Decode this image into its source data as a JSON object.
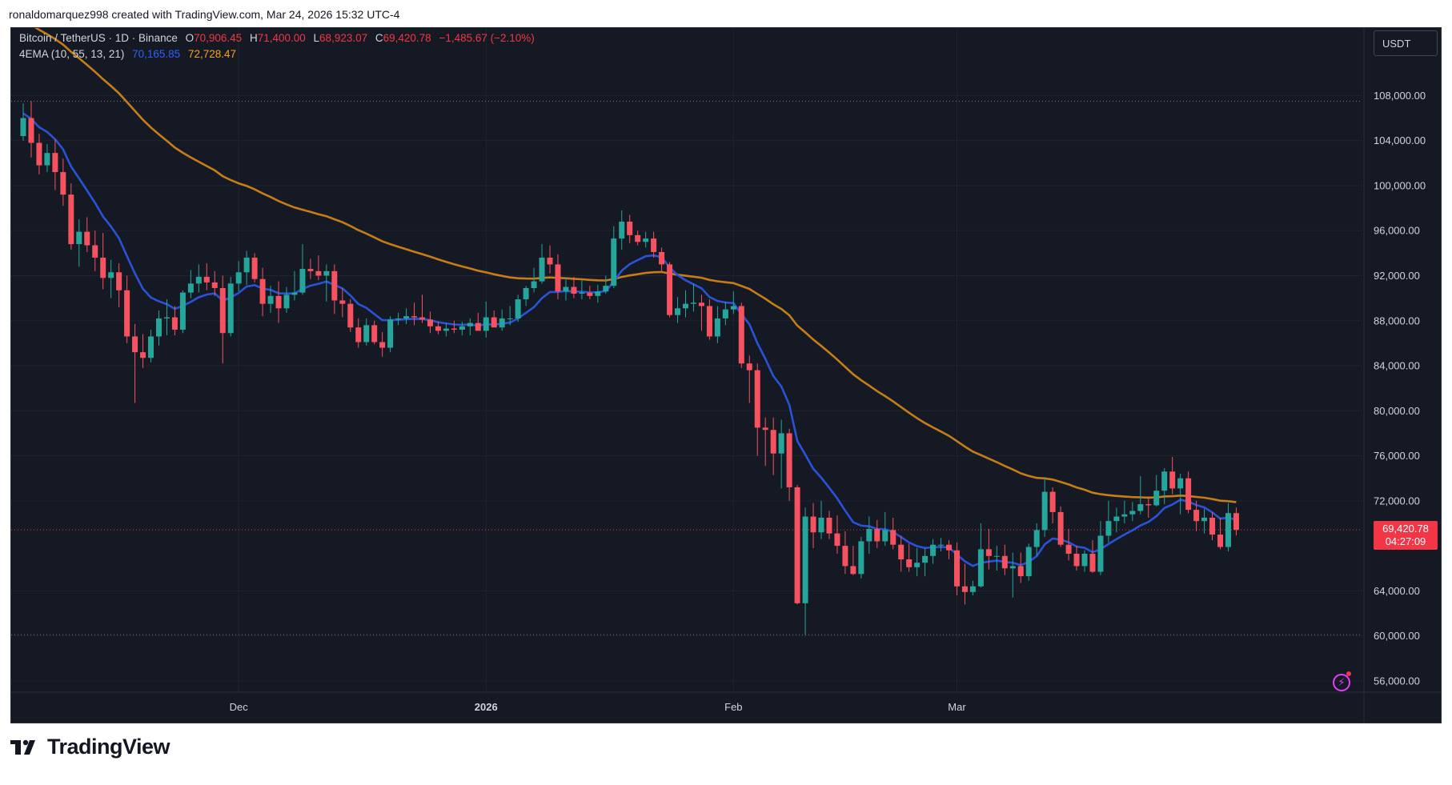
{
  "header": {
    "attribution": "ronaldomarquez998 created with TradingView.com, Mar 24, 2026 15:32 UTC-4"
  },
  "legend": {
    "symbol": "Bitcoin / TetherUS · 1D · Binance",
    "o_label": "O",
    "o_value": "70,906.45",
    "h_label": "H",
    "h_value": "71,400.00",
    "l_label": "L",
    "l_value": "68,923.07",
    "c_label": "C",
    "c_value": "69,420.78",
    "change": "−1,485.67 (−2.10%)",
    "indicator": "4EMA (10, 55, 13, 21)",
    "ema_fast_value": "70,165.85",
    "ema_slow_value": "72,728.47"
  },
  "price_axis": {
    "unit": "USDT",
    "tick_labels": [
      "108,000.00",
      "104,000.00",
      "100,000.00",
      "96,000.00",
      "92,000.00",
      "88,000.00",
      "84,000.00",
      "80,000.00",
      "76,000.00",
      "72,000.00",
      "64,000.00",
      "60,000.00",
      "56,000.00"
    ]
  },
  "last_price": {
    "value": "69,420.78",
    "countdown": "04:27:09"
  },
  "time_axis": {
    "labels": [
      "Dec",
      "2026",
      "Feb",
      "Mar"
    ]
  },
  "colors": {
    "up": "#26a69a",
    "down": "#f7525f",
    "ema_fast": "#2a52d6",
    "ema_slow": "#c57d17",
    "background": "#151924",
    "grid": "#1f2330",
    "axis_text": "#d1d4dc",
    "last_price_tag": "#f23645"
  },
  "icons": [
    "tradingview-logo",
    "lightning-icon"
  ],
  "branding": {
    "name": "TradingView"
  },
  "chart_data": {
    "type": "candlestick",
    "title": "Bitcoin / TetherUS · 1D · Binance",
    "ylim": [
      55000,
      114000
    ],
    "grid": true,
    "legend_position": "top-left",
    "x_start_date": "2025-11-04",
    "x_ticks": [
      {
        "label": "Dec",
        "date": "2025-12-01"
      },
      {
        "label": "2026",
        "date": "2026-01-01"
      },
      {
        "label": "Feb",
        "date": "2026-02-01"
      },
      {
        "label": "Mar",
        "date": "2026-03-01"
      }
    ],
    "y_ticks": [
      56000,
      60000,
      64000,
      72000,
      76000,
      80000,
      84000,
      88000,
      92000,
      96000,
      100000,
      104000,
      108000
    ],
    "last_price": 69420.78,
    "candles": [
      {
        "o": 104400,
        "h": 107300,
        "l": 104000,
        "c": 106000
      },
      {
        "o": 106000,
        "h": 107500,
        "l": 102500,
        "c": 103800
      },
      {
        "o": 103800,
        "h": 104600,
        "l": 101000,
        "c": 101800
      },
      {
        "o": 101800,
        "h": 103700,
        "l": 101200,
        "c": 102900
      },
      {
        "o": 102900,
        "h": 104100,
        "l": 99600,
        "c": 101200
      },
      {
        "o": 101200,
        "h": 102400,
        "l": 98200,
        "c": 99200
      },
      {
        "o": 99200,
        "h": 100200,
        "l": 94300,
        "c": 94800
      },
      {
        "o": 94800,
        "h": 97000,
        "l": 92800,
        "c": 95900
      },
      {
        "o": 95900,
        "h": 97200,
        "l": 94100,
        "c": 94700
      },
      {
        "o": 94700,
        "h": 96000,
        "l": 92400,
        "c": 93600
      },
      {
        "o": 93600,
        "h": 95800,
        "l": 90800,
        "c": 91800
      },
      {
        "o": 91800,
        "h": 93400,
        "l": 90000,
        "c": 92300
      },
      {
        "o": 92300,
        "h": 93100,
        "l": 89200,
        "c": 90700
      },
      {
        "o": 90700,
        "h": 92000,
        "l": 86000,
        "c": 86600
      },
      {
        "o": 86600,
        "h": 87700,
        "l": 80700,
        "c": 85200
      },
      {
        "o": 85200,
        "h": 86800,
        "l": 83800,
        "c": 84700
      },
      {
        "o": 84700,
        "h": 87200,
        "l": 84300,
        "c": 86600
      },
      {
        "o": 86600,
        "h": 88900,
        "l": 85800,
        "c": 88200
      },
      {
        "o": 88200,
        "h": 89900,
        "l": 86700,
        "c": 88300
      },
      {
        "o": 88300,
        "h": 89300,
        "l": 86700,
        "c": 87200
      },
      {
        "o": 87200,
        "h": 90700,
        "l": 86900,
        "c": 90500
      },
      {
        "o": 90500,
        "h": 92500,
        "l": 90000,
        "c": 91300
      },
      {
        "o": 91300,
        "h": 93000,
        "l": 90500,
        "c": 91900
      },
      {
        "o": 91900,
        "h": 93100,
        "l": 90700,
        "c": 91400
      },
      {
        "o": 91400,
        "h": 92400,
        "l": 90200,
        "c": 90900
      },
      {
        "o": 90900,
        "h": 92000,
        "l": 84200,
        "c": 86900
      },
      {
        "o": 86900,
        "h": 91900,
        "l": 86600,
        "c": 91300
      },
      {
        "o": 91300,
        "h": 93300,
        "l": 90600,
        "c": 92300
      },
      {
        "o": 92300,
        "h": 94200,
        "l": 91200,
        "c": 93600
      },
      {
        "o": 93600,
        "h": 94000,
        "l": 91400,
        "c": 91700
      },
      {
        "o": 91700,
        "h": 92700,
        "l": 88400,
        "c": 89500
      },
      {
        "o": 89500,
        "h": 91100,
        "l": 88700,
        "c": 90200
      },
      {
        "o": 90200,
        "h": 91500,
        "l": 87800,
        "c": 89100
      },
      {
        "o": 89100,
        "h": 91000,
        "l": 88700,
        "c": 90300
      },
      {
        "o": 90300,
        "h": 92400,
        "l": 89800,
        "c": 90500
      },
      {
        "o": 90500,
        "h": 94800,
        "l": 90300,
        "c": 92600
      },
      {
        "o": 92600,
        "h": 93500,
        "l": 91700,
        "c": 92400
      },
      {
        "o": 92400,
        "h": 93800,
        "l": 91600,
        "c": 92000
      },
      {
        "o": 92000,
        "h": 93000,
        "l": 89700,
        "c": 92400
      },
      {
        "o": 92400,
        "h": 93000,
        "l": 88600,
        "c": 89800
      },
      {
        "o": 89800,
        "h": 90900,
        "l": 88300,
        "c": 89500
      },
      {
        "o": 89500,
        "h": 89900,
        "l": 87000,
        "c": 87400
      },
      {
        "o": 87400,
        "h": 88200,
        "l": 85600,
        "c": 86100
      },
      {
        "o": 86100,
        "h": 88200,
        "l": 85800,
        "c": 87600
      },
      {
        "o": 87600,
        "h": 88000,
        "l": 85900,
        "c": 86100
      },
      {
        "o": 86100,
        "h": 87000,
        "l": 84800,
        "c": 85600
      },
      {
        "o": 85600,
        "h": 88400,
        "l": 85200,
        "c": 88100
      },
      {
        "o": 88100,
        "h": 88700,
        "l": 87600,
        "c": 88200
      },
      {
        "o": 88200,
        "h": 89100,
        "l": 87700,
        "c": 88400
      },
      {
        "o": 88400,
        "h": 89600,
        "l": 87600,
        "c": 88300
      },
      {
        "o": 88300,
        "h": 90300,
        "l": 87800,
        "c": 88100
      },
      {
        "o": 88100,
        "h": 88800,
        "l": 86900,
        "c": 87500
      },
      {
        "o": 87500,
        "h": 87900,
        "l": 86800,
        "c": 87100
      },
      {
        "o": 87100,
        "h": 87800,
        "l": 86600,
        "c": 87300
      },
      {
        "o": 87300,
        "h": 88000,
        "l": 86900,
        "c": 87200
      },
      {
        "o": 87200,
        "h": 87900,
        "l": 86700,
        "c": 87500
      },
      {
        "o": 87500,
        "h": 88200,
        "l": 86700,
        "c": 87800
      },
      {
        "o": 87800,
        "h": 88700,
        "l": 87100,
        "c": 87100
      },
      {
        "o": 87100,
        "h": 89700,
        "l": 86500,
        "c": 88300
      },
      {
        "o": 88300,
        "h": 88900,
        "l": 87700,
        "c": 87400
      },
      {
        "o": 87400,
        "h": 89000,
        "l": 87100,
        "c": 88200
      },
      {
        "o": 88200,
        "h": 89300,
        "l": 87600,
        "c": 88200
      },
      {
        "o": 88200,
        "h": 90300,
        "l": 87900,
        "c": 89900
      },
      {
        "o": 89900,
        "h": 91100,
        "l": 89300,
        "c": 90900
      },
      {
        "o": 90900,
        "h": 92700,
        "l": 90500,
        "c": 91500
      },
      {
        "o": 91500,
        "h": 94800,
        "l": 91300,
        "c": 93600
      },
      {
        "o": 93600,
        "h": 94700,
        "l": 92200,
        "c": 93000
      },
      {
        "o": 93000,
        "h": 93900,
        "l": 89900,
        "c": 90600
      },
      {
        "o": 90600,
        "h": 91800,
        "l": 89800,
        "c": 91000
      },
      {
        "o": 91000,
        "h": 91900,
        "l": 90000,
        "c": 90400
      },
      {
        "o": 90400,
        "h": 91600,
        "l": 89900,
        "c": 90500
      },
      {
        "o": 90500,
        "h": 91100,
        "l": 89900,
        "c": 90200
      },
      {
        "o": 90200,
        "h": 91200,
        "l": 89600,
        "c": 90600
      },
      {
        "o": 90600,
        "h": 92000,
        "l": 90400,
        "c": 91100
      },
      {
        "o": 91100,
        "h": 96400,
        "l": 90900,
        "c": 95300
      },
      {
        "o": 95300,
        "h": 97800,
        "l": 94300,
        "c": 96800
      },
      {
        "o": 96800,
        "h": 97400,
        "l": 94900,
        "c": 95600
      },
      {
        "o": 95600,
        "h": 96000,
        "l": 94700,
        "c": 95000
      },
      {
        "o": 95000,
        "h": 95900,
        "l": 94500,
        "c": 95300
      },
      {
        "o": 95300,
        "h": 95900,
        "l": 93600,
        "c": 94100
      },
      {
        "o": 94100,
        "h": 94500,
        "l": 92300,
        "c": 93000
      },
      {
        "o": 93000,
        "h": 93200,
        "l": 88300,
        "c": 88500
      },
      {
        "o": 88500,
        "h": 90100,
        "l": 87800,
        "c": 89100
      },
      {
        "o": 89100,
        "h": 90700,
        "l": 88300,
        "c": 89500
      },
      {
        "o": 89500,
        "h": 91300,
        "l": 88800,
        "c": 89600
      },
      {
        "o": 89600,
        "h": 90300,
        "l": 87100,
        "c": 89300
      },
      {
        "o": 89300,
        "h": 89900,
        "l": 86300,
        "c": 86600
      },
      {
        "o": 86600,
        "h": 89300,
        "l": 86000,
        "c": 88200
      },
      {
        "o": 88200,
        "h": 89700,
        "l": 87600,
        "c": 89000
      },
      {
        "o": 89000,
        "h": 90600,
        "l": 88600,
        "c": 89300
      },
      {
        "o": 89300,
        "h": 89600,
        "l": 83800,
        "c": 84200
      },
      {
        "o": 84200,
        "h": 84900,
        "l": 80700,
        "c": 83600
      },
      {
        "o": 83600,
        "h": 84200,
        "l": 76000,
        "c": 78500
      },
      {
        "o": 78500,
        "h": 79400,
        "l": 75100,
        "c": 78300
      },
      {
        "o": 78300,
        "h": 79400,
        "l": 74300,
        "c": 76200
      },
      {
        "o": 76200,
        "h": 79200,
        "l": 73100,
        "c": 78000
      },
      {
        "o": 78000,
        "h": 78400,
        "l": 72000,
        "c": 73200
      },
      {
        "o": 73200,
        "h": 73400,
        "l": 62800,
        "c": 62900
      },
      {
        "o": 62900,
        "h": 71400,
        "l": 60100,
        "c": 70600
      },
      {
        "o": 70600,
        "h": 71800,
        "l": 67800,
        "c": 69200
      },
      {
        "o": 69200,
        "h": 72000,
        "l": 68600,
        "c": 70500
      },
      {
        "o": 70500,
        "h": 71100,
        "l": 68600,
        "c": 69100
      },
      {
        "o": 69100,
        "h": 70700,
        "l": 67300,
        "c": 68000
      },
      {
        "o": 68000,
        "h": 69300,
        "l": 65500,
        "c": 66200
      },
      {
        "o": 66200,
        "h": 68000,
        "l": 65400,
        "c": 65500
      },
      {
        "o": 65500,
        "h": 68800,
        "l": 65100,
        "c": 68400
      },
      {
        "o": 68400,
        "h": 70600,
        "l": 67300,
        "c": 69500
      },
      {
        "o": 69500,
        "h": 70300,
        "l": 67800,
        "c": 68400
      },
      {
        "o": 68400,
        "h": 71000,
        "l": 68000,
        "c": 69400
      },
      {
        "o": 69400,
        "h": 70500,
        "l": 67700,
        "c": 68100
      },
      {
        "o": 68100,
        "h": 68900,
        "l": 65700,
        "c": 66800
      },
      {
        "o": 66800,
        "h": 68200,
        "l": 65700,
        "c": 66100
      },
      {
        "o": 66100,
        "h": 67800,
        "l": 65300,
        "c": 66500
      },
      {
        "o": 66500,
        "h": 67800,
        "l": 65300,
        "c": 67100
      },
      {
        "o": 67100,
        "h": 68600,
        "l": 66400,
        "c": 68100
      },
      {
        "o": 68100,
        "h": 68700,
        "l": 67500,
        "c": 68100
      },
      {
        "o": 68100,
        "h": 68500,
        "l": 66800,
        "c": 67600
      },
      {
        "o": 67600,
        "h": 68300,
        "l": 63600,
        "c": 64400
      },
      {
        "o": 64400,
        "h": 66400,
        "l": 62800,
        "c": 63900
      },
      {
        "o": 63900,
        "h": 64900,
        "l": 63600,
        "c": 64400
      },
      {
        "o": 64400,
        "h": 70000,
        "l": 64300,
        "c": 67700
      },
      {
        "o": 67700,
        "h": 69500,
        "l": 65900,
        "c": 67100
      },
      {
        "o": 67100,
        "h": 68000,
        "l": 65800,
        "c": 67100
      },
      {
        "o": 67100,
        "h": 68100,
        "l": 65400,
        "c": 66000
      },
      {
        "o": 66000,
        "h": 67400,
        "l": 63400,
        "c": 66200
      },
      {
        "o": 66200,
        "h": 67400,
        "l": 64700,
        "c": 65300
      },
      {
        "o": 65300,
        "h": 68200,
        "l": 64900,
        "c": 67900
      },
      {
        "o": 67900,
        "h": 70000,
        "l": 67100,
        "c": 69400
      },
      {
        "o": 69400,
        "h": 74100,
        "l": 68800,
        "c": 72800
      },
      {
        "o": 72800,
        "h": 73200,
        "l": 70000,
        "c": 71000
      },
      {
        "o": 71000,
        "h": 71500,
        "l": 67900,
        "c": 68100
      },
      {
        "o": 68100,
        "h": 69500,
        "l": 66700,
        "c": 67300
      },
      {
        "o": 67300,
        "h": 68000,
        "l": 65800,
        "c": 66200
      },
      {
        "o": 66200,
        "h": 67600,
        "l": 65700,
        "c": 67300
      },
      {
        "o": 67300,
        "h": 68500,
        "l": 65600,
        "c": 65700
      },
      {
        "o": 65700,
        "h": 70200,
        "l": 65400,
        "c": 68900
      },
      {
        "o": 68900,
        "h": 72000,
        "l": 68300,
        "c": 70200
      },
      {
        "o": 70200,
        "h": 71400,
        "l": 69200,
        "c": 70600
      },
      {
        "o": 70600,
        "h": 72000,
        "l": 70000,
        "c": 70800
      },
      {
        "o": 70800,
        "h": 71900,
        "l": 70200,
        "c": 71100
      },
      {
        "o": 71100,
        "h": 74200,
        "l": 70800,
        "c": 71700
      },
      {
        "o": 71700,
        "h": 72400,
        "l": 70500,
        "c": 71600
      },
      {
        "o": 71600,
        "h": 74300,
        "l": 71500,
        "c": 72900
      },
      {
        "o": 72900,
        "h": 74900,
        "l": 71700,
        "c": 74600
      },
      {
        "o": 74600,
        "h": 75900,
        "l": 72600,
        "c": 73100
      },
      {
        "o": 73100,
        "h": 74400,
        "l": 70800,
        "c": 74000
      },
      {
        "o": 74000,
        "h": 74600,
        "l": 70900,
        "c": 71200
      },
      {
        "o": 71200,
        "h": 72000,
        "l": 69300,
        "c": 70200
      },
      {
        "o": 70200,
        "h": 71300,
        "l": 69100,
        "c": 70500
      },
      {
        "o": 70500,
        "h": 71000,
        "l": 68500,
        "c": 69000
      },
      {
        "o": 69000,
        "h": 70500,
        "l": 67700,
        "c": 67900
      },
      {
        "o": 67900,
        "h": 71800,
        "l": 67500,
        "c": 70906.45
      },
      {
        "o": 70906.45,
        "h": 71400,
        "l": 68923.07,
        "c": 69420.78
      }
    ],
    "series": [
      {
        "name": "EMA 10",
        "last": 70165.85
      },
      {
        "name": "EMA 55",
        "last": 72728.47
      }
    ]
  }
}
